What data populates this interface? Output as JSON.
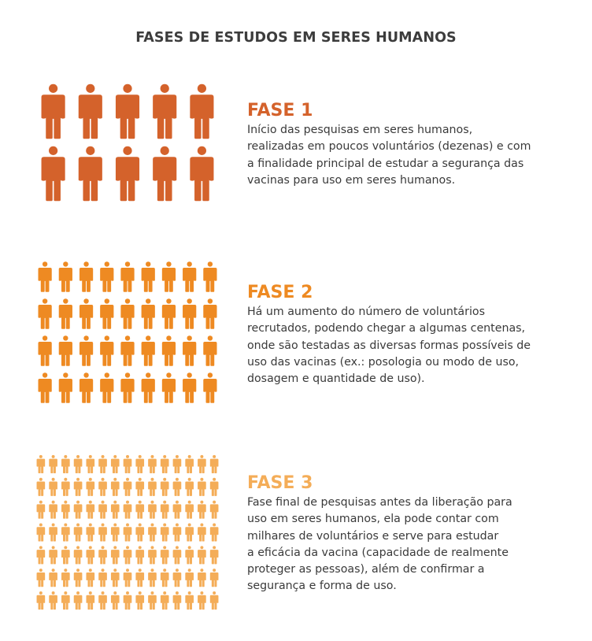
{
  "title": "FASES DE ESTUDOS EM SERES HUMANOS",
  "colors": {
    "phase1": "#d4622b",
    "phase2": "#ee8a22",
    "phase3": "#f4ad58",
    "text": "#3a3a3a"
  },
  "phases": [
    {
      "heading": "FASE 1",
      "description": "Início das pesquisas em seres humanos,\nrealizadas em poucos voluntários (dezenas) e com\na finalidade principal de estudar a segurança das\nvacinas para uso em seres humanos.",
      "people_icons": {
        "rows": 2,
        "columns": 5,
        "icon": "person-icon"
      }
    },
    {
      "heading": "FASE 2",
      "description": "Há um aumento do número de voluntários\nrecrutados, podendo chegar a algumas centenas,\nonde são testadas as diversas formas possíveis de\nuso das vacinas (ex.: posologia ou modo de uso,\ndosagem e quantidade de uso).",
      "people_icons": {
        "rows": 4,
        "columns": 9,
        "icon": "person-icon"
      }
    },
    {
      "heading": "FASE 3",
      "description": "Fase final de pesquisas antes da liberação para\nuso em seres humanos, ela pode contar com\nmilhares de voluntários e serve para estudar\na eficácia da vacina (capacidade de realmente\nproteger as pessoas), além de confirmar a\nsegurança e forma de uso.",
      "people_icons": {
        "rows": 7,
        "columns": 15,
        "icon": "person-icon"
      }
    }
  ]
}
